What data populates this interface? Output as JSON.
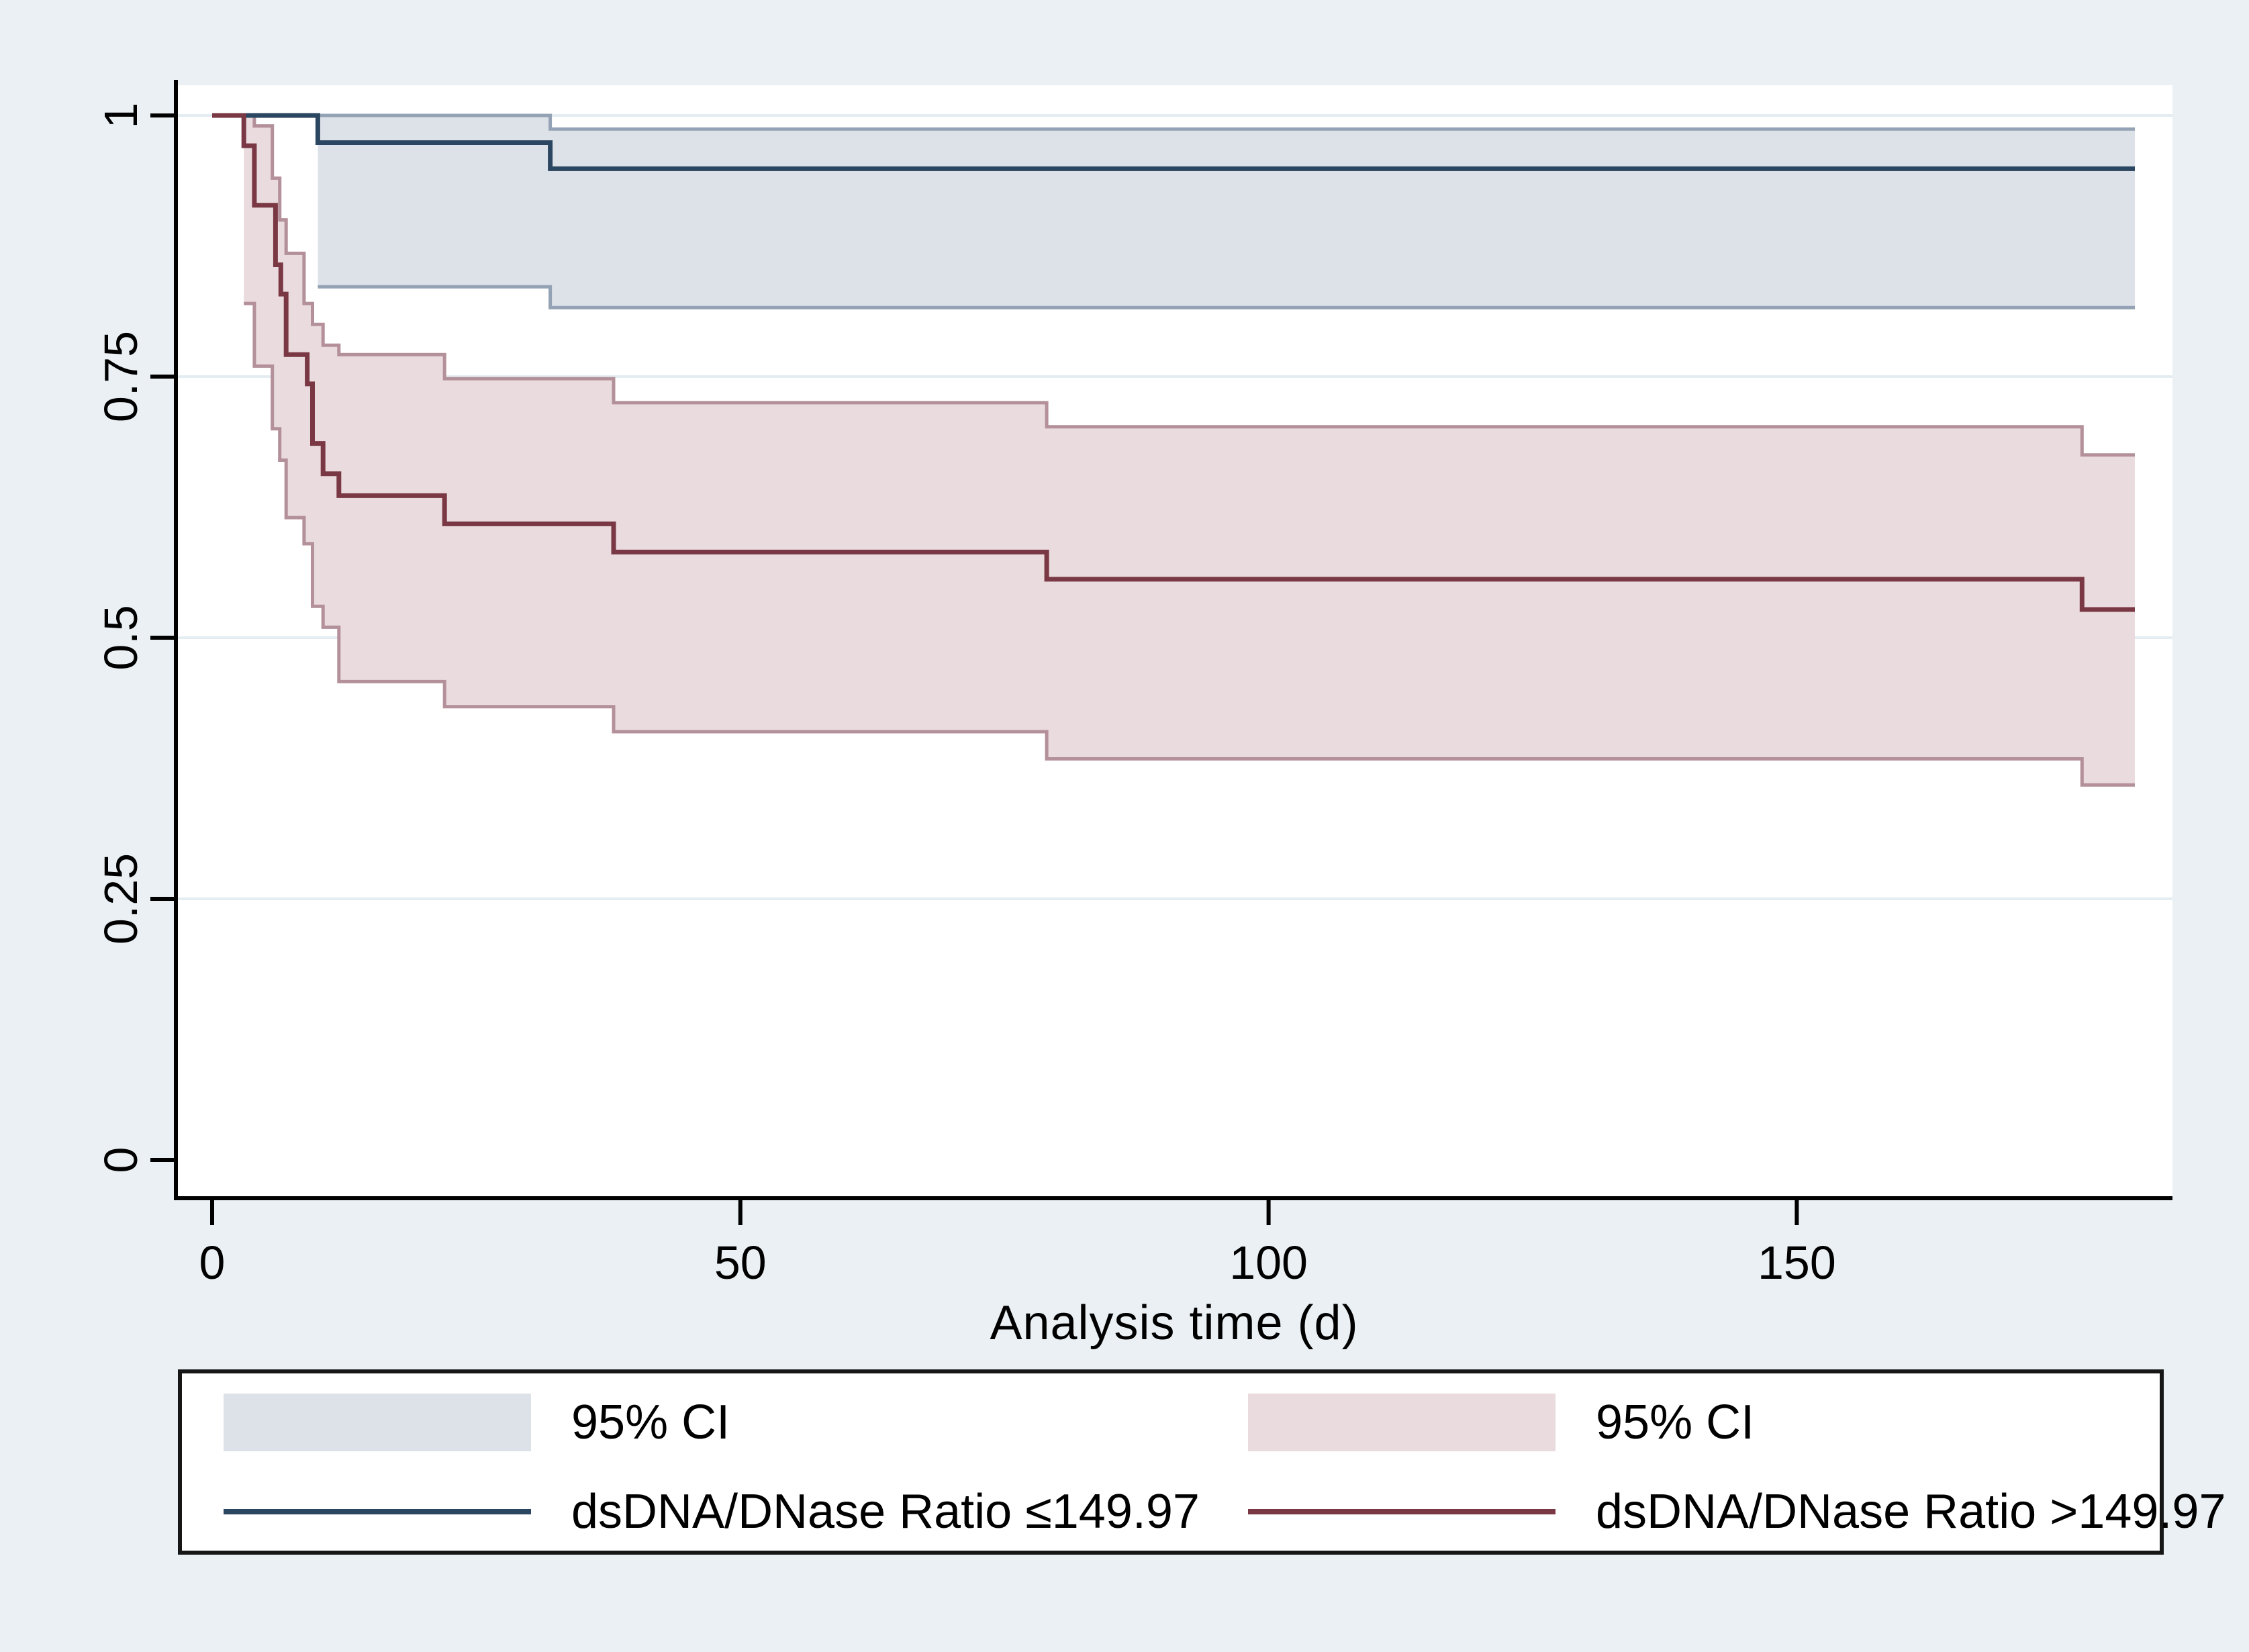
{
  "figure": {
    "background": "#eaf0f3",
    "plot_background": "#ffffff",
    "gridline_color": "#e4edf1",
    "axis_color": "#000000"
  },
  "chart_data": {
    "type": "line",
    "subtype": "kaplan-meier-step",
    "title": "",
    "xlabel": "Analysis time (d)",
    "ylabel": "",
    "xlim": [
      -3.4,
      185.5
    ],
    "ylim": [
      -0.037,
      1.03
    ],
    "grid": "horizontal",
    "legend_position": "bottom",
    "x_ticks": [
      {
        "v": 0,
        "label": "0"
      },
      {
        "v": 50,
        "label": "50"
      },
      {
        "v": 100,
        "label": "100"
      },
      {
        "v": 150,
        "label": "150"
      }
    ],
    "y_ticks": [
      {
        "v": 0,
        "label": "0"
      },
      {
        "v": 0.25,
        "label": "0.25"
      },
      {
        "v": 0.5,
        "label": "0.5"
      },
      {
        "v": 0.75,
        "label": "0.75"
      },
      {
        "v": 1,
        "label": "1"
      }
    ],
    "series": [
      {
        "name": "dsDNA/DNase Ratio ≤149.97",
        "color": "#2b4660",
        "ci_fill": "#dde2e9",
        "ci_edge": "#93a2b4",
        "end_time": 182,
        "steps": [
          [
            0,
            1
          ],
          [
            10,
            0.974
          ],
          [
            32,
            0.949
          ]
        ],
        "ci_upper": [
          [
            10,
            1.0
          ],
          [
            32,
            0.987
          ]
        ],
        "ci_lower": [
          [
            10,
            0.836
          ],
          [
            32,
            0.816
          ]
        ]
      },
      {
        "name": "dsDNA/DNase Ratio >149.97",
        "color": "#7a3844",
        "ci_fill": "#eadbde",
        "ci_edge": "#b3909a",
        "end_time": 182,
        "steps": [
          [
            0,
            1
          ],
          [
            3,
            0.971
          ],
          [
            4,
            0.914
          ],
          [
            6,
            0.857
          ],
          [
            6.5,
            0.829
          ],
          [
            7,
            0.771
          ],
          [
            9,
            0.743
          ],
          [
            9.5,
            0.686
          ],
          [
            10.5,
            0.657
          ],
          [
            12,
            0.636
          ],
          [
            22,
            0.609
          ],
          [
            38,
            0.582
          ],
          [
            79,
            0.556
          ],
          [
            177,
            0.527
          ]
        ],
        "ci_upper": [
          [
            3,
            1.0
          ],
          [
            4,
            0.99
          ],
          [
            5.7,
            0.94
          ],
          [
            6.4,
            0.9
          ],
          [
            7,
            0.868
          ],
          [
            8.7,
            0.82
          ],
          [
            9.5,
            0.8
          ],
          [
            10.5,
            0.78
          ],
          [
            12,
            0.771
          ],
          [
            22,
            0.748
          ],
          [
            38,
            0.725
          ],
          [
            79,
            0.702
          ],
          [
            177,
            0.675
          ]
        ],
        "ci_lower": [
          [
            3,
            0.82
          ],
          [
            4,
            0.76
          ],
          [
            5.7,
            0.7
          ],
          [
            6.4,
            0.67
          ],
          [
            7,
            0.615
          ],
          [
            8.7,
            0.59
          ],
          [
            9.5,
            0.53
          ],
          [
            10.5,
            0.51
          ],
          [
            12,
            0.458
          ],
          [
            22,
            0.434
          ],
          [
            38,
            0.41
          ],
          [
            79,
            0.384
          ],
          [
            177,
            0.359
          ]
        ]
      }
    ]
  },
  "legend": {
    "items": [
      {
        "type": "band",
        "color": "#dde2e9",
        "label": "95% CI"
      },
      {
        "type": "band",
        "color": "#eadbde",
        "label": "95% CI"
      },
      {
        "type": "line",
        "color": "#2b4660",
        "label": "dsDNA/DNase Ratio ≤149.97"
      },
      {
        "type": "line",
        "color": "#7a3844",
        "label": "dsDNA/DNase Ratio >149.97"
      }
    ]
  }
}
